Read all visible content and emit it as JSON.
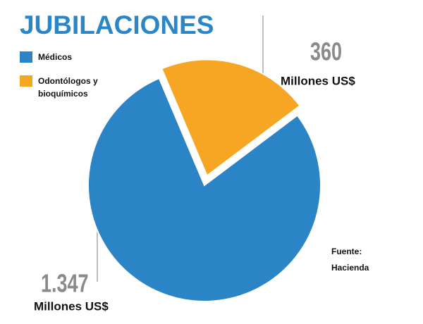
{
  "chart_data": {
    "type": "pie",
    "title": "JUBILACIONES",
    "categories": [
      "Médicos",
      "Odontólogos y bioquímicos"
    ],
    "values": [
      1347,
      360
    ],
    "value_labels": [
      "1.347",
      "360"
    ],
    "colors": [
      "#2b84c6",
      "#f6a623"
    ],
    "unit": "Millones US$",
    "source_label": "Fuente:",
    "source": "Hacienda",
    "legend": "upper left"
  }
}
